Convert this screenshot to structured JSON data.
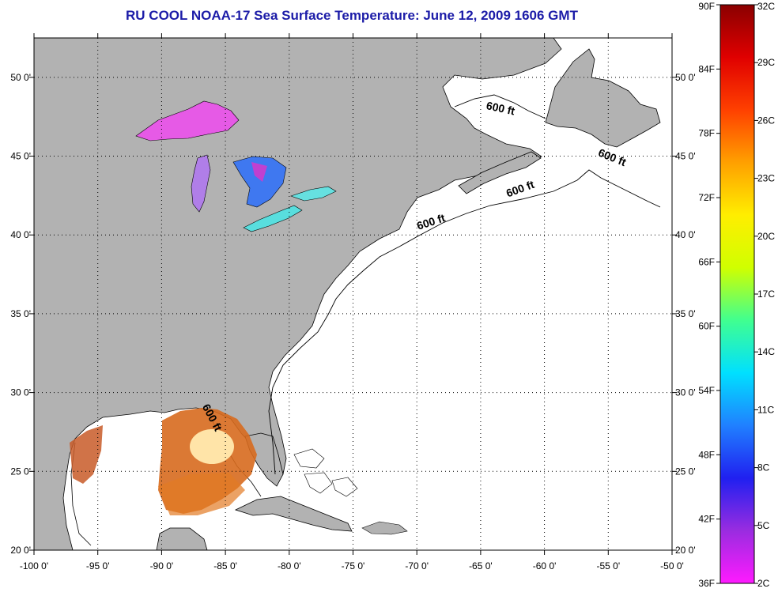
{
  "title": "RU COOL  NOAA-17  Sea Surface Temperature:  June 12, 2009 1606 GMT",
  "map": {
    "lon_range": [
      -100,
      -50
    ],
    "lat_range": [
      20,
      52.5
    ],
    "lon_ticks": [
      {
        "value": -100,
        "label": "-100 0'"
      },
      {
        "value": -95,
        "label": "-95 0'"
      },
      {
        "value": -90,
        "label": "-90 0'"
      },
      {
        "value": -85,
        "label": "-85 0'"
      },
      {
        "value": -80,
        "label": "-80 0'"
      },
      {
        "value": -75,
        "label": "-75 0'"
      },
      {
        "value": -70,
        "label": "-70 0'"
      },
      {
        "value": -65,
        "label": "-65 0'"
      },
      {
        "value": -60,
        "label": "-60 0'"
      },
      {
        "value": -55,
        "label": "-55 0'"
      },
      {
        "value": -50,
        "label": "-50 0'"
      }
    ],
    "lat_ticks": [
      {
        "value": 20,
        "label": "20 0'"
      },
      {
        "value": 25,
        "label": "25 0'"
      },
      {
        "value": 30,
        "label": "30 0'"
      },
      {
        "value": 35,
        "label": "35 0'"
      },
      {
        "value": 40,
        "label": "40 0'"
      },
      {
        "value": 45,
        "label": "45 0'"
      },
      {
        "value": 50,
        "label": "50 0'"
      }
    ],
    "contour_labels": [
      {
        "text": "600 ft",
        "lon": -68.8,
        "lat": 40.6,
        "rotate": -18
      },
      {
        "text": "600 ft",
        "lon": -61.8,
        "lat": 42.7,
        "rotate": -20
      },
      {
        "text": "600 ft",
        "lon": -63.5,
        "lat": 47.8,
        "rotate": 12
      },
      {
        "text": "600 ft",
        "lon": -54.8,
        "lat": 44.7,
        "rotate": 22
      },
      {
        "text": "600 ft",
        "lon": -86.3,
        "lat": 28.3,
        "rotate": 62
      }
    ],
    "colors": {
      "land": "#b2b2b2",
      "ocean": "#ffffff",
      "grid": "#000000",
      "lake_superior": "#e65ae6",
      "lake_michigan": "#b07ee8",
      "lake_huron": "#3f78f0",
      "lake_erie": "#58dede",
      "lake_ontario": "#66e0e0",
      "gulf_sst": "#d76a1e"
    }
  },
  "colorbar": {
    "f_labels": [
      {
        "value": 90,
        "label": "90F"
      },
      {
        "value": 84,
        "label": "84F"
      },
      {
        "value": 78,
        "label": "78F"
      },
      {
        "value": 72,
        "label": "72F"
      },
      {
        "value": 66,
        "label": "66F"
      },
      {
        "value": 60,
        "label": "60F"
      },
      {
        "value": 54,
        "label": "54F"
      },
      {
        "value": 48,
        "label": "48F"
      },
      {
        "value": 42,
        "label": "42F"
      },
      {
        "value": 36,
        "label": "36F"
      }
    ],
    "c_labels": [
      {
        "value": 32,
        "label": "32C"
      },
      {
        "value": 29,
        "label": "29C"
      },
      {
        "value": 26,
        "label": "26C"
      },
      {
        "value": 23,
        "label": "23C"
      },
      {
        "value": 20,
        "label": "20C"
      },
      {
        "value": 17,
        "label": "17C"
      },
      {
        "value": 14,
        "label": "14C"
      },
      {
        "value": 11,
        "label": "11C"
      },
      {
        "value": 8,
        "label": "8C"
      },
      {
        "value": 5,
        "label": "5C"
      },
      {
        "value": 2,
        "label": "2C"
      }
    ],
    "stops": [
      "#ff1aff",
      "#9a2ce0",
      "#2020f0",
      "#2080ff",
      "#00e0ff",
      "#40ff90",
      "#d0ff00",
      "#ffee00",
      "#ffa000",
      "#ff4000",
      "#e00000",
      "#8a0000"
    ]
  }
}
